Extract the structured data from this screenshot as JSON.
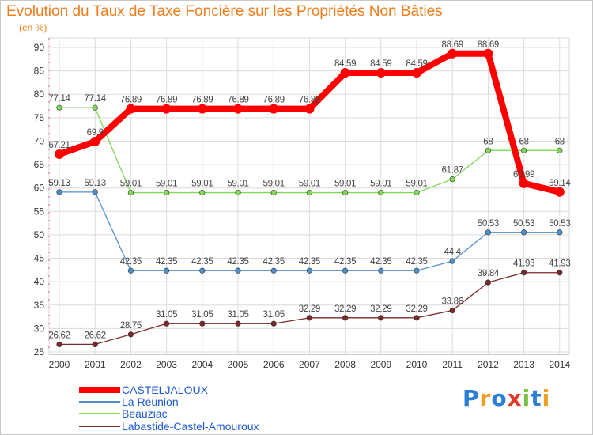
{
  "title": "Evolution du Taux de Taxe Foncière sur les Propriétés Non Bâties",
  "subtitle": "(en %)",
  "logo": {
    "text": "Proxiti",
    "colors": [
      "#2a7fd4",
      "#f0a020",
      "#2a7fd4",
      "#e23b2a",
      "#7cc242",
      "#2a7fd4",
      "#f0a020"
    ]
  },
  "chart_data": {
    "type": "line",
    "x": [
      "2000",
      "2001",
      "2002",
      "2003",
      "2004",
      "2005",
      "2006",
      "2007",
      "2008",
      "2009",
      "2010",
      "2011",
      "2012",
      "2013",
      "2014"
    ],
    "ylim": [
      25,
      90
    ],
    "yticks": [
      25,
      30,
      35,
      40,
      45,
      50,
      55,
      60,
      65,
      70,
      75,
      80,
      85,
      90
    ],
    "grid": true,
    "legend_placement": "bottom-left",
    "series": [
      {
        "name": "CASTELJALOUX",
        "color": "#ff0000",
        "values": [
          67.21,
          69.9,
          76.89,
          76.89,
          76.89,
          76.89,
          76.89,
          76.89,
          84.59,
          84.59,
          84.59,
          88.69,
          88.69,
          60.99,
          59.14
        ],
        "labels": [
          "67.21",
          "69.9",
          "76.89",
          "76.89",
          "76.89",
          "76.89",
          "76.89",
          "76.89",
          "84.59",
          "84.59",
          "84.59",
          "88.69",
          "88.69",
          "60.99",
          "59.14"
        ]
      },
      {
        "name": "La Réunion",
        "color": "#4f8fcb",
        "values": [
          59.13,
          59.13,
          42.35,
          42.35,
          42.35,
          42.35,
          42.35,
          42.35,
          42.35,
          42.35,
          42.35,
          44.4,
          50.53,
          50.53,
          50.53
        ],
        "labels": [
          "59.13",
          "59.13",
          "42.35",
          "42.35",
          "42.35",
          "42.35",
          "42.35",
          "42.35",
          "42.35",
          "42.35",
          "42.35",
          "44.4",
          "50.53",
          "50.53",
          "50.53"
        ]
      },
      {
        "name": "Beauziac",
        "color": "#7ed957",
        "values": [
          77.14,
          77.14,
          59.01,
          59.01,
          59.01,
          59.01,
          59.01,
          59.01,
          59.01,
          59.01,
          59.01,
          61.87,
          68,
          68,
          68
        ],
        "labels": [
          "77.14",
          "77.14",
          "59.01",
          "59.01",
          "59.01",
          "59.01",
          "59.01",
          "59.01",
          "59.01",
          "59.01",
          "59.01",
          "61.87",
          "68",
          "68",
          "68"
        ]
      },
      {
        "name": "Labastide-Castel-Amouroux",
        "color": "#7a2a2a",
        "values": [
          26.62,
          26.62,
          28.75,
          31.05,
          31.05,
          31.05,
          31.05,
          32.29,
          32.29,
          32.29,
          32.29,
          33.86,
          39.84,
          41.93,
          41.93
        ],
        "labels": [
          "26.62",
          "26.62",
          "28.75",
          "31.05",
          "31.05",
          "31.05",
          "31.05",
          "32.29",
          "32.29",
          "32.29",
          "32.29",
          "33.86",
          "39.84",
          "41.93",
          "41.93"
        ]
      }
    ]
  }
}
